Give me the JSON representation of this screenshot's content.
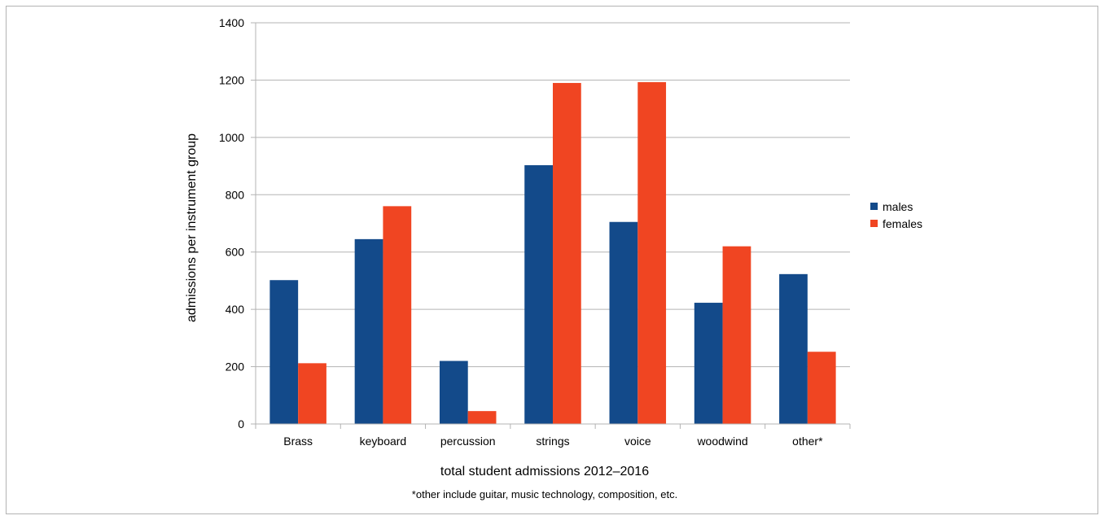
{
  "chart_data": {
    "type": "bar",
    "title": "",
    "xlabel": "total student admissions 2012–2016",
    "ylabel": "admissions per instrument group",
    "footnote": "*other include guitar, music technology, composition, etc.",
    "categories": [
      "Brass",
      "keyboard",
      "percussion",
      "strings",
      "voice",
      "woodwind",
      "other*"
    ],
    "series": [
      {
        "name": "males",
        "color": "#134a8a",
        "values": [
          502,
          645,
          220,
          903,
          705,
          423,
          523
        ]
      },
      {
        "name": "females",
        "color": "#f04522",
        "values": [
          212,
          760,
          45,
          1190,
          1193,
          620,
          252
        ]
      }
    ],
    "ylim": [
      0,
      1400
    ],
    "yticks": [
      0,
      200,
      400,
      600,
      800,
      1000,
      1200,
      1400
    ],
    "grid": true,
    "legend_position": "right"
  }
}
